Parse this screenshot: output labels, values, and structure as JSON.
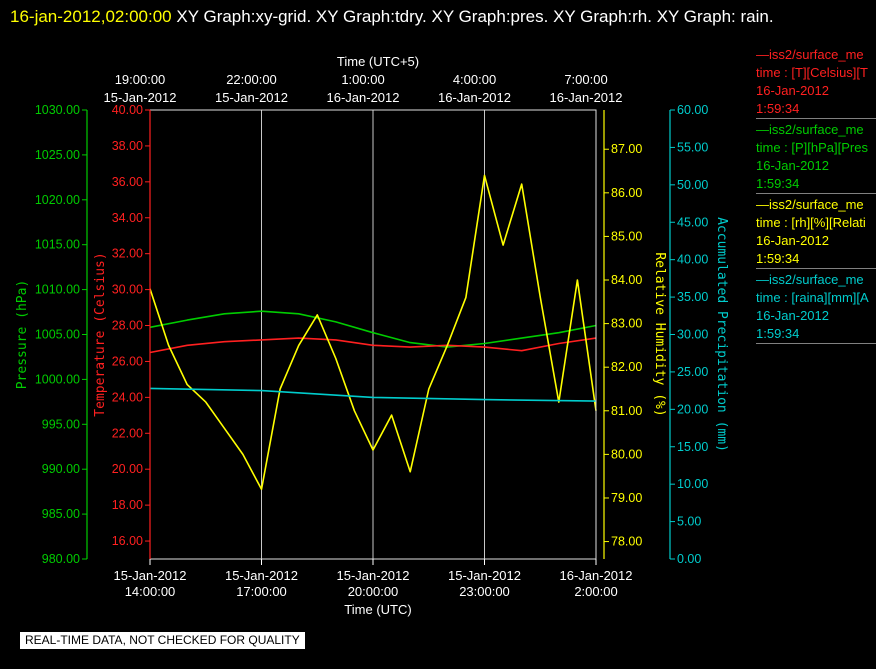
{
  "header": {
    "timestamp": "16-jan-2012,02:00:00",
    "title": "XY Graph:xy-grid.  XY Graph:tdry.  XY Graph:pres.  XY Graph:rh.  XY Graph: rain."
  },
  "footer": "REAL-TIME DATA, NOT CHECKED FOR QUALITY",
  "colors": {
    "pressure": "#00cc00",
    "temperature": "#ff2020",
    "humidity": "#ffff00",
    "precip": "#00cccc",
    "grid": "#ffffff"
  },
  "legend": [
    {
      "line1": "—iss2/surface_me",
      "line2": "time : [T][Celsius][T",
      "line3": "16-Jan-2012",
      "line4": "1:59:34",
      "color": "#ff2020"
    },
    {
      "line1": "—iss2/surface_me",
      "line2": "time : [P][hPa][Pres",
      "line3": "16-Jan-2012",
      "line4": "1:59:34",
      "color": "#00cc00"
    },
    {
      "line1": "—iss2/surface_me",
      "line2": "time : [rh][%][Relati",
      "line3": "16-Jan-2012",
      "line4": "1:59:34",
      "color": "#ffff00"
    },
    {
      "line1": "—iss2/surface_me",
      "line2": "time : [raina][mm][A",
      "line3": "16-Jan-2012",
      "line4": "1:59:34",
      "color": "#00cccc"
    }
  ],
  "chart_data": {
    "type": "line",
    "top_axis": {
      "label": "Time (UTC+5)",
      "ticks": [
        {
          "time": "19:00:00",
          "date": "15-Jan-2012"
        },
        {
          "time": "22:00:00",
          "date": "15-Jan-2012"
        },
        {
          "time": "1:00:00",
          "date": "16-Jan-2012"
        },
        {
          "time": "4:00:00",
          "date": "16-Jan-2012"
        },
        {
          "time": "7:00:00",
          "date": "16-Jan-2012"
        }
      ]
    },
    "bottom_axis": {
      "label": "Time (UTC)",
      "ticks": [
        {
          "date": "15-Jan-2012",
          "time": "14:00:00"
        },
        {
          "date": "15-Jan-2012",
          "time": "17:00:00"
        },
        {
          "date": "15-Jan-2012",
          "time": "20:00:00"
        },
        {
          "date": "15-Jan-2012",
          "time": "23:00:00"
        },
        {
          "date": "16-Jan-2012",
          "time": "2:00:00"
        }
      ]
    },
    "x_range_hours_utc": [
      "2012-01-15 14:00",
      "2012-01-16 02:00"
    ],
    "axes": {
      "pressure": {
        "label": "Pressure (hPa)",
        "ylim": [
          980,
          1030
        ],
        "ticks": [
          "980.00",
          "985.00",
          "990.00",
          "995.00",
          "1000.00",
          "1005.00",
          "1010.00",
          "1015.00",
          "1020.00",
          "1025.00",
          "1030.00"
        ]
      },
      "temperature": {
        "label": "Temperature (Celsius)",
        "ylim": [
          15,
          40
        ],
        "ticks": [
          "16.00",
          "18.00",
          "20.00",
          "22.00",
          "24.00",
          "26.00",
          "28.00",
          "30.00",
          "32.00",
          "34.00",
          "36.00",
          "38.00",
          "40.00"
        ]
      },
      "humidity": {
        "label": "Relative Humidity (%)",
        "ylim": [
          77.6,
          87.9
        ],
        "ticks": [
          "78.00",
          "79.00",
          "80.00",
          "81.00",
          "82.00",
          "83.00",
          "84.00",
          "85.00",
          "86.00",
          "87.00"
        ]
      },
      "precip": {
        "label": "Accumulated Precipitation (mm)",
        "ylim": [
          0,
          60
        ],
        "ticks": [
          "0.00",
          "5.00",
          "10.00",
          "15.00",
          "20.00",
          "25.00",
          "30.00",
          "35.00",
          "40.00",
          "45.00",
          "50.00",
          "55.00",
          "60.00"
        ]
      }
    },
    "series": [
      {
        "name": "Pressure",
        "axis": "pressure",
        "color": "#00cc00",
        "x": [
          "2012-01-15 14:00",
          "2012-01-15 15:00",
          "2012-01-15 16:00",
          "2012-01-15 17:00",
          "2012-01-15 18:00",
          "2012-01-15 19:00",
          "2012-01-15 20:00",
          "2012-01-15 21:00",
          "2012-01-15 22:00",
          "2012-01-15 23:00",
          "2012-01-16 00:00",
          "2012-01-16 01:00",
          "2012-01-16 02:00"
        ],
        "values": [
          1005.8,
          1006.6,
          1007.3,
          1007.6,
          1007.3,
          1006.4,
          1005.2,
          1004.1,
          1003.6,
          1004.0,
          1004.6,
          1005.2,
          1006.0
        ]
      },
      {
        "name": "Temperature",
        "axis": "temperature",
        "color": "#ff2020",
        "x": [
          "2012-01-15 14:00",
          "2012-01-15 15:00",
          "2012-01-15 16:00",
          "2012-01-15 17:00",
          "2012-01-15 18:00",
          "2012-01-15 19:00",
          "2012-01-15 20:00",
          "2012-01-15 21:00",
          "2012-01-15 22:00",
          "2012-01-15 23:00",
          "2012-01-16 00:00",
          "2012-01-16 01:00",
          "2012-01-16 02:00"
        ],
        "values": [
          26.5,
          26.9,
          27.1,
          27.2,
          27.3,
          27.2,
          26.9,
          26.8,
          26.9,
          26.8,
          26.6,
          27.0,
          27.3
        ]
      },
      {
        "name": "Relative Humidity",
        "axis": "humidity",
        "color": "#ffff00",
        "x": [
          "2012-01-15 14:00",
          "2012-01-15 14:30",
          "2012-01-15 15:00",
          "2012-01-15 15:30",
          "2012-01-15 16:00",
          "2012-01-15 16:30",
          "2012-01-15 17:00",
          "2012-01-15 17:30",
          "2012-01-15 18:00",
          "2012-01-15 18:30",
          "2012-01-15 19:00",
          "2012-01-15 19:30",
          "2012-01-15 20:00",
          "2012-01-15 20:30",
          "2012-01-15 21:00",
          "2012-01-15 21:30",
          "2012-01-15 22:00",
          "2012-01-15 22:30",
          "2012-01-15 23:00",
          "2012-01-15 23:30",
          "2012-01-16 00:00",
          "2012-01-16 00:30",
          "2012-01-16 01:00",
          "2012-01-16 01:30",
          "2012-01-16 02:00"
        ],
        "values": [
          83.8,
          82.5,
          81.6,
          81.2,
          80.6,
          80.0,
          79.2,
          81.5,
          82.5,
          83.2,
          82.2,
          81.0,
          80.1,
          80.9,
          79.6,
          81.5,
          82.5,
          83.6,
          86.4,
          84.8,
          86.2,
          83.6,
          81.2,
          84.0,
          81.0
        ]
      },
      {
        "name": "Accumulated Precipitation",
        "axis": "precip",
        "color": "#00cccc",
        "x": [
          "2012-01-15 14:00",
          "2012-01-15 17:00",
          "2012-01-15 20:00",
          "2012-01-15 23:00",
          "2012-01-16 02:00"
        ],
        "values": [
          22.8,
          22.5,
          21.6,
          21.3,
          21.1
        ]
      }
    ]
  }
}
